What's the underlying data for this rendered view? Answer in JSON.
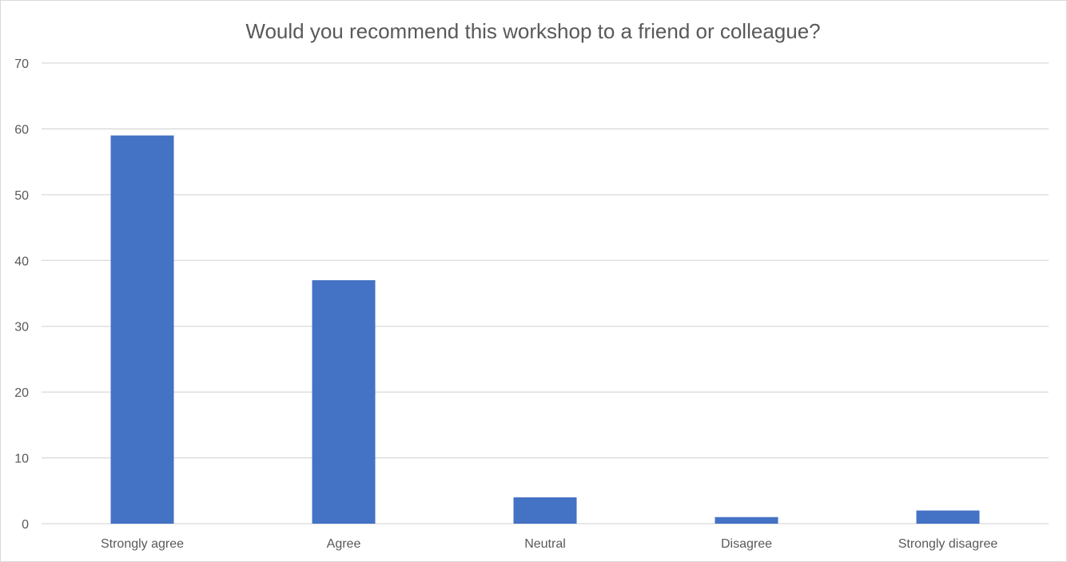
{
  "chart_data": {
    "type": "bar",
    "title": "Would you recommend this workshop to a friend or colleague?",
    "categories": [
      "Strongly agree",
      "Agree",
      "Neutral",
      "Disagree",
      "Strongly disagree"
    ],
    "values": [
      59,
      37,
      4,
      1,
      2
    ],
    "ylim": [
      0,
      70
    ],
    "yticks": [
      "0",
      "10",
      "20",
      "30",
      "40",
      "50",
      "60",
      "70"
    ],
    "grid": true,
    "legend": "none",
    "bar_color": "#4472C4",
    "grid_color": "#d9d9d9",
    "text_color": "#595959"
  }
}
